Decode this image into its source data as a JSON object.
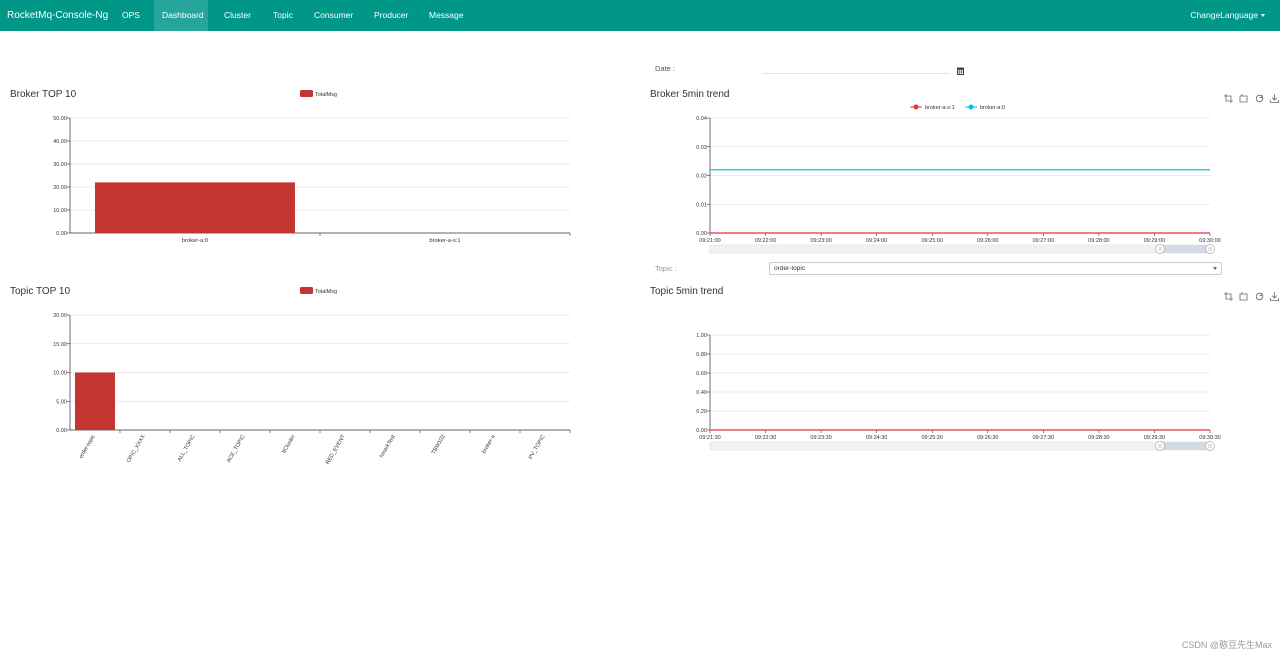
{
  "nav": {
    "brand": "RocketMq-Console-Ng",
    "items": [
      "OPS",
      "Dashboard",
      "Cluster",
      "Topic",
      "Consumer",
      "Producer",
      "Message"
    ],
    "active": "Dashboard",
    "language": "ChangeLanguage"
  },
  "date": {
    "label": "Date :",
    "value": ""
  },
  "topic_select": {
    "label": "Topic :",
    "value": "order-topic"
  },
  "footer": "CSDN @憨豆先生Max",
  "colors": {
    "nav": "#009688",
    "nav_active": "#26a69a",
    "bar": "#c23531",
    "line_red": "#e5323e",
    "line_blue": "#00c0f0"
  },
  "toolbox_icons": [
    "zoom-icon",
    "zoom-reset-icon",
    "restore-icon",
    "save-image-icon"
  ],
  "chart_data": [
    {
      "type": "bar",
      "title": "Broker TOP 10",
      "legend": [
        "TotalMsg"
      ],
      "categories": [
        "broker-a:0",
        "broker-a-s:1"
      ],
      "series": [
        {
          "name": "TotalMsg",
          "values": [
            22,
            0
          ]
        }
      ],
      "ylim": [
        0,
        50
      ],
      "yticks": [
        "0.00",
        "10.00",
        "20.00",
        "30.00",
        "40.00",
        "50.00"
      ],
      "grid": true
    },
    {
      "type": "line",
      "title": "Broker 5min trend",
      "legend": [
        "broker-a-s:1",
        "broker-a:0"
      ],
      "x": [
        "09:21:00",
        "09:22:00",
        "09:23:00",
        "09:24:00",
        "09:25:00",
        "09:26:00",
        "09:27:00",
        "09:28:00",
        "09:29:00",
        "09:30:00"
      ],
      "series": [
        {
          "name": "broker-a-s:1",
          "values": [
            0,
            0,
            0,
            0,
            0,
            0,
            0,
            0,
            0,
            0
          ]
        },
        {
          "name": "broker-a:0",
          "values": [
            0.022,
            0.022,
            0.022,
            0.022,
            0.022,
            0.022,
            0.022,
            0.022,
            0.022,
            0.022
          ]
        }
      ],
      "ylim": [
        0,
        0.04
      ],
      "yticks": [
        "0.00",
        "0.01",
        "0.02",
        "0.03",
        "0.04"
      ],
      "grid": true
    },
    {
      "type": "bar",
      "title": "Topic TOP 10",
      "legend": [
        "TotalMsg"
      ],
      "categories": [
        "order-topic",
        "TOPIC_XXXX",
        "ALL_TOPIC",
        "TRACE_TOPIC",
        "DefaultCluster",
        "SCHEDULED_EVENT",
        "BenchmarkTest",
        "TBW102",
        "broker-a",
        "SPV_TOPIC"
      ],
      "tick_labels": [
        "order-topic",
        "OPIC_XXXX",
        "ALL_TOPIC",
        "ACE_TOPIC",
        "ltCluster",
        "RED_EVENT",
        "hmarkTest",
        "TBW102",
        "broker-a",
        "PV_TOPIC"
      ],
      "series": [
        {
          "name": "TotalMsg",
          "values": [
            10,
            0,
            0,
            0,
            0,
            0,
            0,
            0,
            0,
            0
          ]
        }
      ],
      "ylim": [
        0,
        20
      ],
      "yticks": [
        "0.00",
        "5.00",
        "10.00",
        "15.00",
        "20.00"
      ],
      "grid": true
    },
    {
      "type": "line",
      "title": "Topic 5min trend",
      "x": [
        "09:21:30",
        "09:22:30",
        "09:23:30",
        "09:24:30",
        "09:25:30",
        "09:26:30",
        "09:27:30",
        "09:28:30",
        "09:29:30",
        "09:30:30"
      ],
      "series": [
        {
          "name": "order-topic",
          "values": [
            0,
            0,
            0,
            0,
            0,
            0,
            0,
            0,
            0,
            0
          ]
        }
      ],
      "ylim": [
        0,
        1
      ],
      "yticks": [
        "0.00",
        "0.20",
        "0.40",
        "0.60",
        "0.80",
        "1.00"
      ],
      "grid": true
    }
  ]
}
